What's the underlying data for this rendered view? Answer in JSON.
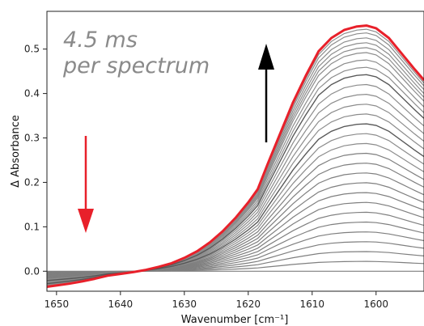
{
  "chart_data": {
    "type": "line",
    "xlabel": "Wavenumber [cm⁻¹]",
    "ylabel": "Δ Absorbance",
    "xlim": [
      1651.5,
      1592.5
    ],
    "ylim": [
      -0.045,
      0.585
    ],
    "x_ticks": [
      "1650",
      "1640",
      "1630",
      "1620",
      "1610",
      "1600"
    ],
    "y_ticks": [
      "0.0",
      "0.1",
      "0.2",
      "0.3",
      "0.4",
      "0.5"
    ],
    "annotation_line1": "4.5 ms",
    "annotation_line2": "per spectrum",
    "colors": {
      "final_spectrum": "#e8202a",
      "intermediate_spectra": "#7f7f7f",
      "early_spectra": "#2b2b2b",
      "arrow_up": "#000000",
      "arrow_down": "#e8202a"
    },
    "grid": false,
    "x": [
      1651.5,
      1650,
      1648,
      1646,
      1644,
      1642,
      1640,
      1638,
      1636,
      1634,
      1632,
      1630,
      1628,
      1626,
      1624,
      1622,
      1620,
      1618.5,
      1617,
      1615,
      1613,
      1611,
      1609,
      1607,
      1605,
      1603,
      1601.5,
      1600,
      1598,
      1596,
      1594,
      1592.5
    ],
    "series": [
      {
        "role": "final",
        "values": [
          -0.035,
          -0.032,
          -0.028,
          -0.023,
          -0.017,
          -0.01,
          -0.006,
          -0.002,
          0.003,
          0.01,
          0.018,
          0.03,
          0.045,
          0.065,
          0.09,
          0.12,
          0.155,
          0.185,
          0.24,
          0.31,
          0.38,
          0.44,
          0.495,
          0.525,
          0.543,
          0.551,
          0.553,
          0.547,
          0.525,
          0.49,
          0.455,
          0.43
        ]
      },
      {
        "role": "initial",
        "values": [
          0,
          0,
          0,
          0,
          0,
          0,
          0,
          0,
          0,
          0,
          0,
          0,
          0,
          0,
          0,
          0,
          0,
          0,
          0,
          0,
          0,
          0,
          0,
          0,
          0,
          0,
          0,
          0,
          0,
          0,
          0,
          0
        ]
      }
    ],
    "intermediate_scales": [
      0.04,
      0.08,
      0.12,
      0.16,
      0.2,
      0.24,
      0.28,
      0.32,
      0.36,
      0.4,
      0.44,
      0.48,
      0.52,
      0.56,
      0.6,
      0.64,
      0.68,
      0.72,
      0.76,
      0.8,
      0.83,
      0.86,
      0.89,
      0.91,
      0.93,
      0.95,
      0.97,
      0.985
    ]
  }
}
